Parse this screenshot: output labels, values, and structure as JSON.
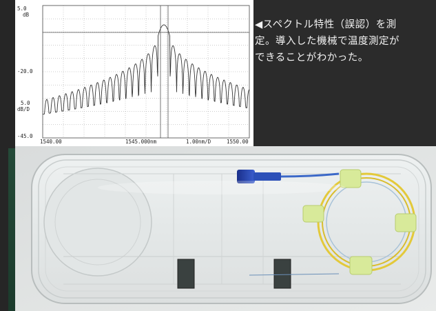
{
  "spectrum": {
    "y_labels": {
      "top_value": "5.0",
      "top_unit": "dB",
      "mid_value": "-20.0",
      "scale_value": "5.0",
      "scale_unit": "dB/D",
      "bottom_value": "-45.0"
    },
    "x_labels": {
      "start": "1540.00",
      "center": "1545.000nm",
      "span": "1.00nm/D",
      "end": "1550.00"
    }
  },
  "caption": {
    "line1": "◀スペクトル特性（誤認）を測",
    "line2": "定。導入した機械で温度測定が",
    "line3": "できることがわかった。"
  }
}
